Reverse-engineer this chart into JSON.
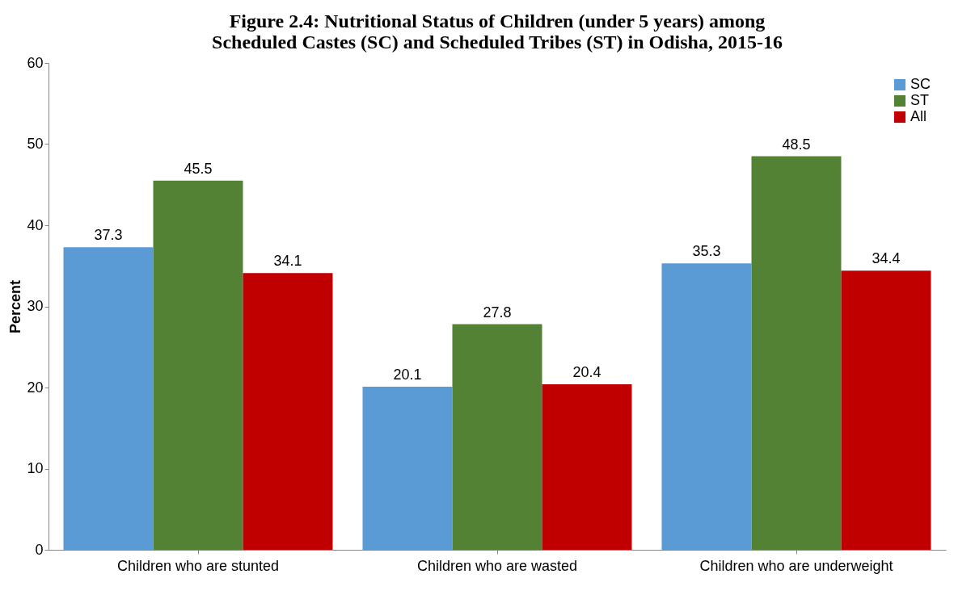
{
  "chart_data": {
    "type": "bar",
    "title": "Figure 2.4: Nutritional Status of Children (under 5 years) among\nScheduled Castes (SC) and Scheduled Tribes (ST) in  Odisha, 2015-16",
    "ylabel": "Percent",
    "categories": [
      "Children who are stunted",
      "Children who are wasted",
      "Children  who are underweight"
    ],
    "series": [
      {
        "name": "SC",
        "color": "#5b9bd5",
        "values": [
          37.3,
          20.1,
          35.3
        ]
      },
      {
        "name": "ST",
        "color": "#548235",
        "values": [
          45.5,
          27.8,
          48.5
        ]
      },
      {
        "name": "All",
        "color": "#c00000",
        "values": [
          34.1,
          20.4,
          34.4
        ]
      }
    ],
    "ylim": [
      0,
      60
    ],
    "yticks": [
      0,
      10,
      20,
      30,
      40,
      50,
      60
    ],
    "data_labels": true,
    "grid": false,
    "legend": "top right"
  }
}
